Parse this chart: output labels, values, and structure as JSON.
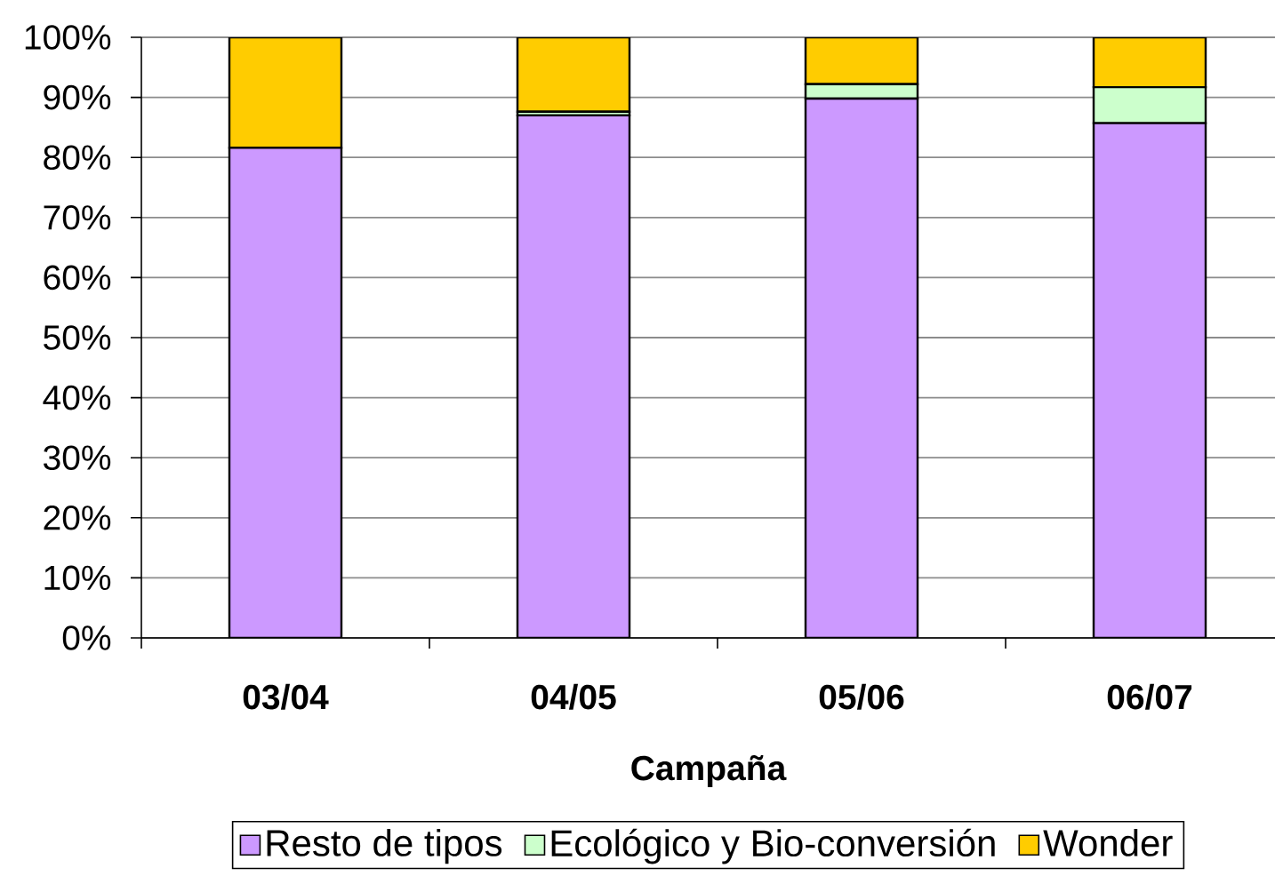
{
  "chart_data": {
    "type": "bar",
    "stacked": true,
    "xlabel": "Campaña",
    "categories": [
      "03/04",
      "04/05",
      "05/06",
      "06/07"
    ],
    "series": [
      {
        "name": "Resto de tipos",
        "color": "#cc99ff",
        "values": [
          81.6,
          87.0,
          89.8,
          85.7
        ]
      },
      {
        "name": "Ecológico y Bio-conversión",
        "color": "#ccffcc",
        "values": [
          0,
          0.6,
          2.4,
          6.0
        ]
      },
      {
        "name": "Wonder",
        "color": "#ffcc00",
        "values": [
          18.4,
          12.4,
          7.8,
          8.3
        ]
      }
    ],
    "ylim": [
      0,
      100
    ],
    "yticks": [
      {
        "value": 0,
        "label": "0%"
      },
      {
        "value": 10,
        "label": "10%"
      },
      {
        "value": 20,
        "label": "20%"
      },
      {
        "value": 30,
        "label": "30%"
      },
      {
        "value": 40,
        "label": "40%"
      },
      {
        "value": 50,
        "label": "50%"
      },
      {
        "value": 60,
        "label": "60%"
      },
      {
        "value": 70,
        "label": "70%"
      },
      {
        "value": 80,
        "label": "80%"
      },
      {
        "value": 90,
        "label": "90%"
      },
      {
        "value": 100,
        "label": "100%"
      }
    ],
    "grid": "y",
    "legend": "bottom"
  }
}
